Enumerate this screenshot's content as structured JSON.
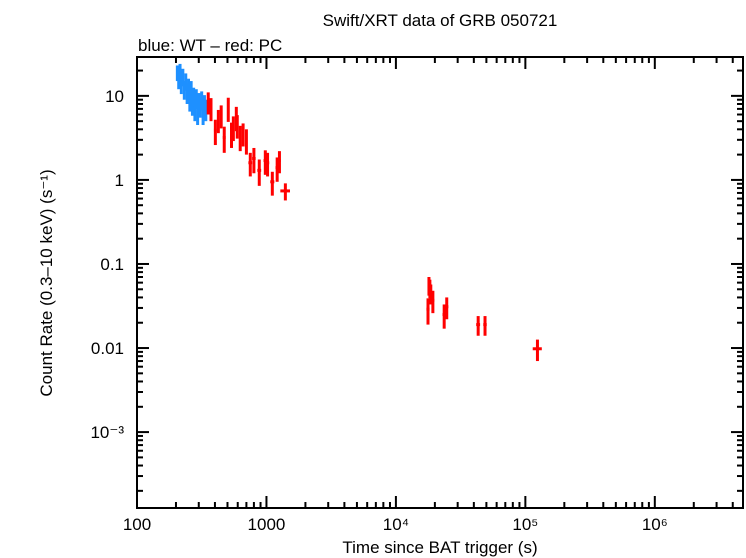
{
  "chart_data": {
    "type": "scatter",
    "title": "Swift/XRT data of GRB 050721",
    "subtitle": "blue: WT – red: PC",
    "xlabel": "Time since BAT trigger (s)",
    "ylabel": "Count Rate (0.3–10 keV) (s⁻¹)",
    "xscale": "log",
    "yscale": "log",
    "xlim": [
      100,
      4800000
    ],
    "ylim": [
      0.000125,
      29
    ],
    "grid": false,
    "x_ticks": [
      {
        "value": 100,
        "label": "100"
      },
      {
        "value": 1000,
        "label": "1000"
      },
      {
        "value": 10000,
        "label": "10⁴"
      },
      {
        "value": 100000,
        "label": "10⁵"
      },
      {
        "value": 1000000,
        "label": "10⁶"
      }
    ],
    "y_ticks": [
      {
        "value": 10,
        "label": "10"
      },
      {
        "value": 1,
        "label": "1"
      },
      {
        "value": 0.1,
        "label": "0.1"
      },
      {
        "value": 0.01,
        "label": "0.01"
      },
      {
        "value": 0.001,
        "label": "10⁻³"
      }
    ],
    "series": [
      {
        "name": "WT",
        "color": "#1e90ff",
        "points": [
          {
            "t": 205,
            "rate": 19,
            "t_err": 3,
            "rate_err": 4
          },
          {
            "t": 210,
            "rate": 16,
            "t_err": 3,
            "rate_err": 4
          },
          {
            "t": 215,
            "rate": 20,
            "t_err": 3,
            "rate_err": 4
          },
          {
            "t": 220,
            "rate": 14,
            "t_err": 3,
            "rate_err": 3.5
          },
          {
            "t": 226,
            "rate": 17,
            "t_err": 3,
            "rate_err": 4
          },
          {
            "t": 232,
            "rate": 12,
            "t_err": 3,
            "rate_err": 3
          },
          {
            "t": 238,
            "rate": 15,
            "t_err": 3,
            "rate_err": 3.5
          },
          {
            "t": 244,
            "rate": 11,
            "t_err": 3,
            "rate_err": 3
          },
          {
            "t": 250,
            "rate": 13,
            "t_err": 3,
            "rate_err": 3
          },
          {
            "t": 256,
            "rate": 9,
            "t_err": 3,
            "rate_err": 2.5
          },
          {
            "t": 262,
            "rate": 12,
            "t_err": 3,
            "rate_err": 3
          },
          {
            "t": 268,
            "rate": 8,
            "t_err": 3,
            "rate_err": 2.2
          },
          {
            "t": 274,
            "rate": 10,
            "t_err": 3,
            "rate_err": 2.5
          },
          {
            "t": 280,
            "rate": 7,
            "t_err": 3,
            "rate_err": 2
          },
          {
            "t": 287,
            "rate": 9.5,
            "t_err": 3,
            "rate_err": 2.5
          },
          {
            "t": 294,
            "rate": 6.5,
            "t_err": 3,
            "rate_err": 2
          },
          {
            "t": 301,
            "rate": 8.5,
            "t_err": 3,
            "rate_err": 2.3
          },
          {
            "t": 308,
            "rate": 7.5,
            "t_err": 3,
            "rate_err": 2
          },
          {
            "t": 316,
            "rate": 9,
            "t_err": 3,
            "rate_err": 2.3
          },
          {
            "t": 324,
            "rate": 6.5,
            "t_err": 3,
            "rate_err": 2
          },
          {
            "t": 332,
            "rate": 8,
            "t_err": 3,
            "rate_err": 2.2
          },
          {
            "t": 340,
            "rate": 7,
            "t_err": 3,
            "rate_err": 2
          }
        ]
      },
      {
        "name": "PC",
        "color": "#ff0000",
        "points": [
          {
            "t": 355,
            "rate": 8.5,
            "t_err": 8,
            "rate_err": 2.5
          },
          {
            "t": 373,
            "rate": 7.2,
            "t_err": 8,
            "rate_err": 2.2
          },
          {
            "t": 403,
            "rate": 3.9,
            "t_err": 10,
            "rate_err": 1.3
          },
          {
            "t": 425,
            "rate": 5.2,
            "t_err": 8,
            "rate_err": 1.6
          },
          {
            "t": 447,
            "rate": 5.9,
            "t_err": 8,
            "rate_err": 1.8
          },
          {
            "t": 472,
            "rate": 3.2,
            "t_err": 12,
            "rate_err": 1.1
          },
          {
            "t": 507,
            "rate": 7.2,
            "t_err": 8,
            "rate_err": 2.3
          },
          {
            "t": 537,
            "rate": 3.6,
            "t_err": 10,
            "rate_err": 1.2
          },
          {
            "t": 555,
            "rate": 4.3,
            "t_err": 8,
            "rate_err": 1.4
          },
          {
            "t": 585,
            "rate": 5.6,
            "t_err": 8,
            "rate_err": 1.8
          },
          {
            "t": 595,
            "rate": 4.5,
            "t_err": 8,
            "rate_err": 1.4
          },
          {
            "t": 627,
            "rate": 3.3,
            "t_err": 10,
            "rate_err": 1.1
          },
          {
            "t": 660,
            "rate": 3.6,
            "t_err": 10,
            "rate_err": 1.1
          },
          {
            "t": 700,
            "rate": 3.0,
            "t_err": 12,
            "rate_err": 1.0
          },
          {
            "t": 750,
            "rate": 1.6,
            "t_err": 25,
            "rate_err": 0.5
          },
          {
            "t": 800,
            "rate": 1.8,
            "t_err": 25,
            "rate_err": 0.6
          },
          {
            "t": 880,
            "rate": 1.3,
            "t_err": 30,
            "rate_err": 0.45
          },
          {
            "t": 980,
            "rate": 1.7,
            "t_err": 30,
            "rate_err": 0.55
          },
          {
            "t": 1020,
            "rate": 1.6,
            "t_err": 30,
            "rate_err": 0.5
          },
          {
            "t": 1110,
            "rate": 0.95,
            "t_err": 40,
            "rate_err": 0.3
          },
          {
            "t": 1210,
            "rate": 1.4,
            "t_err": 35,
            "rate_err": 0.45
          },
          {
            "t": 1260,
            "rate": 1.7,
            "t_err": 30,
            "rate_err": 0.5
          },
          {
            "t": 1400,
            "rate": 0.74,
            "t_err": 120,
            "rate_err": 0.17
          },
          {
            "t": 17700,
            "rate": 0.029,
            "t_err": 500,
            "rate_err": 0.01
          },
          {
            "t": 18000,
            "rate": 0.056,
            "t_err": 400,
            "rate_err": 0.014
          },
          {
            "t": 18300,
            "rate": 0.052,
            "t_err": 400,
            "rate_err": 0.013
          },
          {
            "t": 18600,
            "rate": 0.045,
            "t_err": 400,
            "rate_err": 0.012
          },
          {
            "t": 19300,
            "rate": 0.037,
            "t_err": 500,
            "rate_err": 0.011
          },
          {
            "t": 23600,
            "rate": 0.025,
            "t_err": 700,
            "rate_err": 0.008
          },
          {
            "t": 24700,
            "rate": 0.031,
            "t_err": 700,
            "rate_err": 0.009
          },
          {
            "t": 43200,
            "rate": 0.019,
            "t_err": 1500,
            "rate_err": 0.005
          },
          {
            "t": 48800,
            "rate": 0.019,
            "t_err": 1500,
            "rate_err": 0.005
          },
          {
            "t": 124000,
            "rate": 0.0098,
            "t_err": 10000,
            "rate_err": 0.0028
          }
        ]
      }
    ]
  }
}
